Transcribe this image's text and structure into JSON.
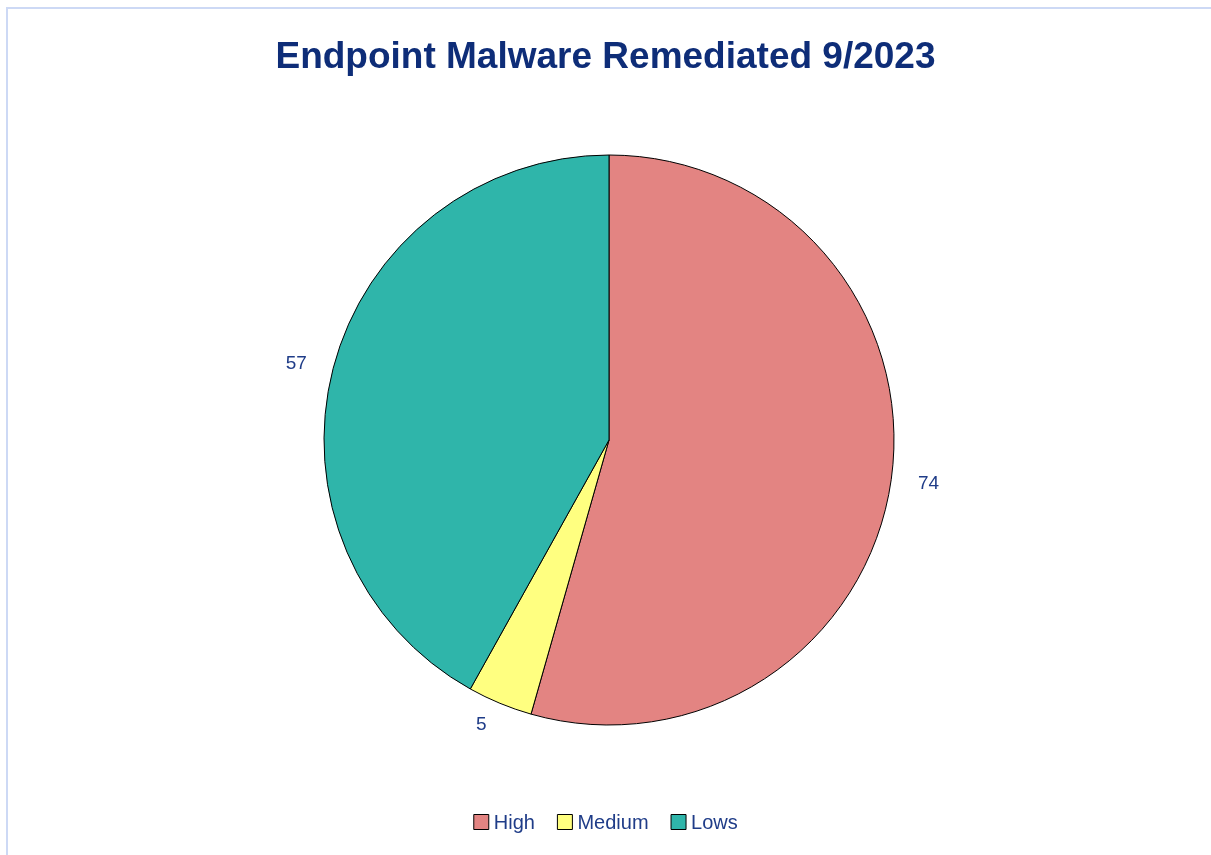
{
  "chart_data": {
    "type": "pie",
    "title": "Endpoint Malware Remediated 9/2023",
    "categories": [
      "High",
      "Medium",
      "Lows"
    ],
    "values": [
      74,
      5,
      57
    ],
    "colors": [
      "#e38482",
      "#ffff80",
      "#2fb5aa"
    ],
    "data_labels": true,
    "legend": "bottom"
  }
}
